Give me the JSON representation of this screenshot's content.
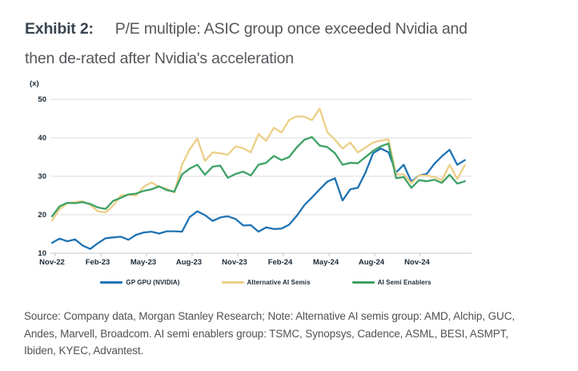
{
  "title": {
    "exhibit_label": "Exhibit 2:",
    "line1": "P/E multiple: ASIC group once exceeded Nvidia and",
    "line2": "then de-rated after Nvidia's acceleration"
  },
  "source": {
    "line1": "Source: Company data, Morgan Stanley Research; Note: Alternative AI semis group: AMD, Alchip, GUC,",
    "line2": "Andes, Marvell, Broadcom. AI semi enablers group: TSMC, Synopsys, Cadence, ASML, BESI, ASMPT,",
    "line3": "Ibiden, KYEC, Advantest."
  },
  "chart_data": {
    "type": "line",
    "title": "P/E multiple: ASIC group once exceeded Nvidia and then de-rated after Nvidia's acceleration",
    "unit_label": "(x)",
    "ylabel": "P/E (x)",
    "ylim": [
      10,
      52
    ],
    "y_ticks": [
      10,
      20,
      30,
      40,
      50
    ],
    "x_tick_labels": [
      "Nov-22",
      "Feb-23",
      "May-23",
      "Aug-23",
      "Nov-23",
      "Feb-24",
      "May-24",
      "Aug-24",
      "Nov-24"
    ],
    "x_start_month": "2022-11",
    "x_step_months": 0.5,
    "grid": true,
    "legend_position": "bottom",
    "colors": {
      "grid": "#DCDCDC",
      "axis": "#C4C4C4",
      "axis_text": "#1B2A38"
    },
    "series": [
      {
        "name": "GP GPU (NVIDIA)",
        "color": "#1F74B4",
        "values": [
          12.7,
          13.8,
          13.1,
          13.6,
          12.0,
          11.1,
          12.6,
          13.9,
          14.1,
          14.3,
          13.5,
          14.8,
          15.4,
          15.6,
          15.1,
          15.7,
          15.7,
          15.6,
          19.4,
          20.9,
          19.9,
          18.4,
          19.3,
          19.6,
          18.9,
          17.2,
          17.3,
          15.6,
          16.7,
          16.3,
          16.4,
          17.4,
          19.7,
          22.5,
          24.5,
          26.6,
          28.6,
          29.5,
          23.7,
          26.6,
          27.0,
          31.0,
          36.0,
          37.2,
          36.3,
          31.0,
          33.0,
          28.6,
          30.2,
          30.6,
          33.2,
          35.2,
          36.9,
          33.0,
          34.2
        ]
      },
      {
        "name": "Alternative AI Semis",
        "color": "#ECCF87",
        "values": [
          18.5,
          21.5,
          23.0,
          23.3,
          23.5,
          22.5,
          20.9,
          20.6,
          22.4,
          25.0,
          25.2,
          25.0,
          27.3,
          28.4,
          27.2,
          26.8,
          25.8,
          33.0,
          37.0,
          39.8,
          34.0,
          36.2,
          36.0,
          35.6,
          37.8,
          37.3,
          36.2,
          41.0,
          39.2,
          42.6,
          41.4,
          44.6,
          45.6,
          45.5,
          44.6,
          47.6,
          41.5,
          39.5,
          37.2,
          38.8,
          36.2,
          37.5,
          38.8,
          39.3,
          39.6,
          30.5,
          30.5,
          28.2,
          30.2,
          30.2,
          29.8,
          29.0,
          33.0,
          29.3,
          32.9
        ]
      },
      {
        "name": "AI Semi Enablers",
        "color": "#3EA266",
        "values": [
          19.6,
          22.2,
          23.1,
          23.0,
          23.3,
          22.8,
          21.9,
          21.5,
          23.6,
          24.4,
          25.3,
          25.5,
          26.2,
          26.6,
          27.4,
          26.4,
          26.0,
          30.5,
          32.0,
          33.0,
          30.4,
          32.5,
          32.8,
          29.6,
          30.6,
          31.2,
          30.2,
          33.0,
          33.5,
          35.3,
          34.2,
          35.0,
          37.5,
          39.5,
          40.2,
          38.0,
          37.6,
          36.0,
          33.0,
          33.5,
          33.4,
          35.0,
          36.6,
          37.8,
          38.5,
          29.5,
          29.8,
          27.0,
          29.0,
          28.7,
          29.1,
          28.3,
          30.4,
          28.1,
          28.7
        ]
      }
    ]
  }
}
